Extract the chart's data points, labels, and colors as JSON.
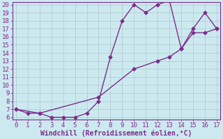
{
  "xlabel": "Windchill (Refroidissement éolien,°C)",
  "line1_x": [
    0,
    1,
    2,
    3,
    4,
    5,
    6,
    7,
    8,
    9,
    10,
    11,
    12,
    13,
    14,
    15,
    16,
    17
  ],
  "line1_y": [
    7.0,
    6.5,
    6.5,
    6.0,
    6.0,
    6.0,
    6.5,
    8.0,
    13.5,
    18.0,
    20.0,
    19.0,
    20.0,
    20.5,
    14.5,
    17.0,
    19.0,
    17.0
  ],
  "line2_x": [
    0,
    2,
    7,
    10,
    12,
    13,
    14,
    15,
    16,
    17
  ],
  "line2_y": [
    7.0,
    6.5,
    8.5,
    12.0,
    13.0,
    13.5,
    14.5,
    16.5,
    16.5,
    17.0
  ],
  "line_color": "#7b2d8b",
  "bg_color": "#cce9f0",
  "grid_color": "#b0c8cc",
  "ylim_min": 6,
  "ylim_max": 20,
  "xlim_min": 0,
  "xlim_max": 17,
  "yticks": [
    6,
    7,
    8,
    9,
    10,
    11,
    12,
    13,
    14,
    15,
    16,
    17,
    18,
    19,
    20
  ],
  "xticks": [
    0,
    1,
    2,
    3,
    4,
    5,
    6,
    7,
    8,
    9,
    10,
    11,
    12,
    13,
    14,
    15,
    16,
    17
  ],
  "xlabel_fontsize": 7,
  "tick_fontsize": 6.5,
  "marker_size": 2.5,
  "line_width": 1.0
}
